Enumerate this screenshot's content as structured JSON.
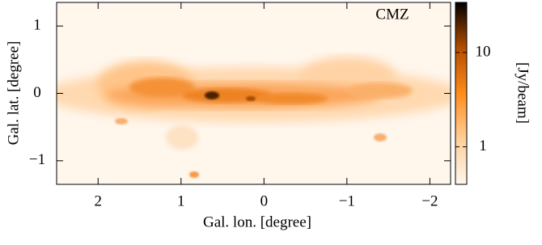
{
  "chart_data": {
    "type": "heatmap",
    "annotation": "CMZ",
    "xlabel": "Gal. lon. [degree]",
    "ylabel": "Gal. lat. [degree]",
    "colorbar_label": "[Jy/beam]",
    "xlim": [
      2.5,
      -2.25
    ],
    "xticks": [
      2,
      1,
      0,
      {
        "value": -1,
        "label": "−1"
      },
      {
        "value": -2,
        "label": "−2"
      }
    ],
    "ylim": [
      -1.35,
      1.35
    ],
    "yticks": [
      1,
      0,
      {
        "value": -1,
        "label": "−1"
      }
    ],
    "clim": [
      0.4,
      34
    ],
    "cticks": [
      1,
      10
    ],
    "color_log": true,
    "colormap": [
      "#fff6ec",
      "#ffcf99",
      "#ff8c1a",
      "#b34d00",
      "#000000"
    ]
  }
}
